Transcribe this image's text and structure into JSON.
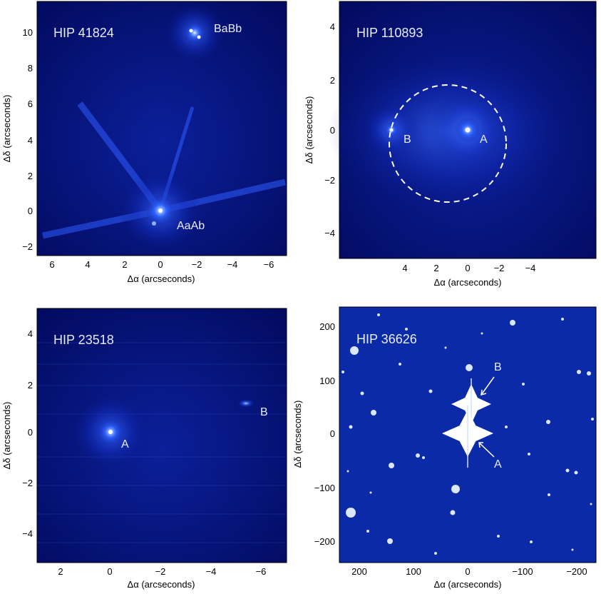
{
  "figure": {
    "panels": [
      {
        "id": "hip41824",
        "name": "HIP  41824",
        "xlabel": "Δα  (arcseconds)",
        "ylabel": "Δδ  (arcseconds)",
        "xticks": [
          "6",
          "4",
          "2",
          "0",
          "−2",
          "−4",
          "−6"
        ],
        "yticks": [
          "10",
          "8",
          "6",
          "4",
          "2",
          "0",
          "−2"
        ],
        "labels": [
          "BaBb",
          "AaAb"
        ],
        "style": "blue-dark"
      },
      {
        "id": "hip110893",
        "name": "HIP  110893",
        "xlabel": "Δα  (arcseconds)",
        "ylabel": "Δδ  (arcseconds)",
        "xticks": [
          "4",
          "2",
          "0",
          "−2",
          "−4"
        ],
        "yticks": [
          "4",
          "2",
          "0",
          "−2",
          "−4"
        ],
        "labels": [
          "B",
          "A"
        ],
        "style": "blue-dark"
      },
      {
        "id": "hip23518",
        "name": "HIP  23518",
        "xlabel": "Δα  (arcseconds)",
        "ylabel": "Δδ  (arcseconds)",
        "xticks": [
          "2",
          "0",
          "−2",
          "−4",
          "−6"
        ],
        "yticks": [
          "4",
          "2",
          "0",
          "−2",
          "−4"
        ],
        "labels": [
          "A",
          "B"
        ],
        "style": "blue-dark"
      },
      {
        "id": "hip36626",
        "name": "HIP  36626",
        "xlabel": "Δα  (arcseconds)",
        "ylabel": "Δδ  (arcseconds)",
        "xticks": [
          "200",
          "100",
          "0",
          "−100",
          "−200"
        ],
        "yticks": [
          "200",
          "100",
          "0",
          "−100",
          "−200"
        ],
        "labels": [
          "B",
          "A"
        ],
        "style": "blue-bright"
      }
    ]
  },
  "colors": {
    "background": "#020a5e",
    "background_bright": "#0a2aa8",
    "glow": "#3f6dff",
    "star_core": "#ffffff",
    "text": "#e8ecff",
    "axis": "#000000"
  }
}
